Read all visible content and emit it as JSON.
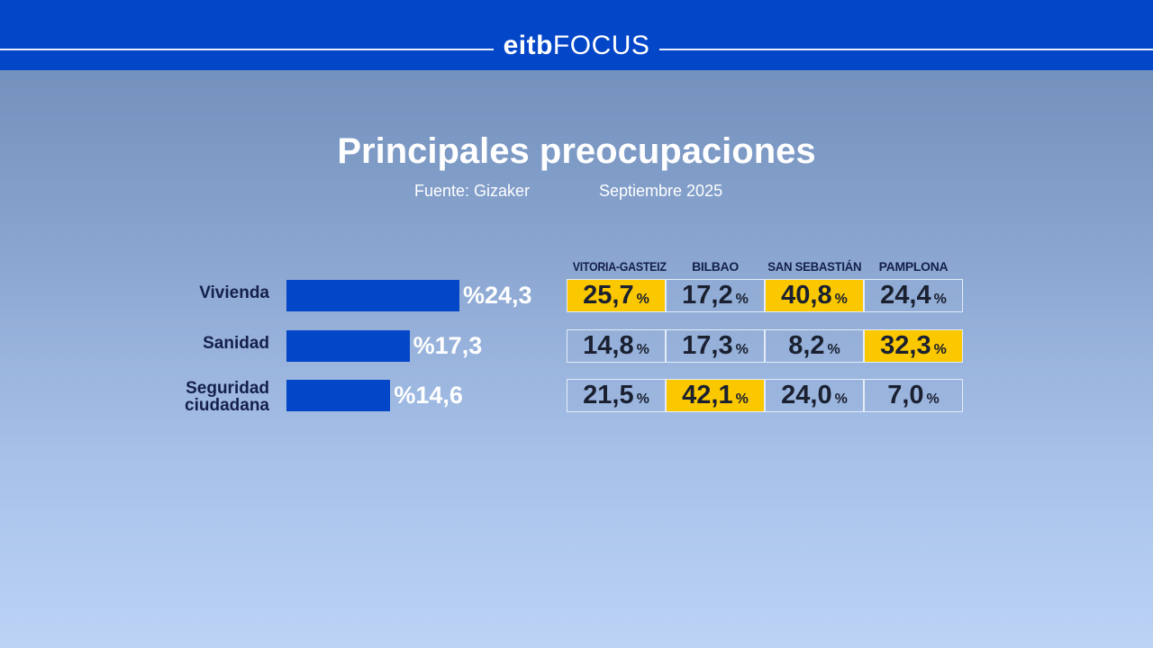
{
  "header": {
    "logo_text": "eitbFOCUS",
    "brand_color": "#0446c8"
  },
  "title": "Principales preocupaciones",
  "source": "Fuente: Gizaker",
  "date": "Septiembre 2025",
  "chart_data": {
    "type": "bar",
    "orientation": "horizontal",
    "categories": [
      "Vivienda",
      "Sanidad",
      "Seguridad ciudadana"
    ],
    "values": [
      24.3,
      17.3,
      14.6
    ],
    "value_labels": [
      "%24,3",
      "%17,3",
      "%14,6"
    ],
    "bar_color": "#0446c8",
    "table": {
      "type": "table",
      "columns": [
        "VITORIA-GASTEIZ",
        "BILBAO",
        "SAN SEBASTIÁN",
        "PAMPLONA"
      ],
      "rows": [
        {
          "values": [
            "25,7",
            "17,2",
            "40,8",
            "24,4"
          ],
          "highlight": [
            true,
            false,
            true,
            false
          ]
        },
        {
          "values": [
            "14,8",
            "17,3",
            "8,2",
            "32,3"
          ],
          "highlight": [
            false,
            false,
            false,
            true
          ]
        },
        {
          "values": [
            "21,5",
            "42,1",
            "24,0",
            "7,0"
          ],
          "highlight": [
            false,
            true,
            false,
            false
          ]
        }
      ],
      "unit": "%",
      "highlight_color": "#fbc800"
    }
  }
}
